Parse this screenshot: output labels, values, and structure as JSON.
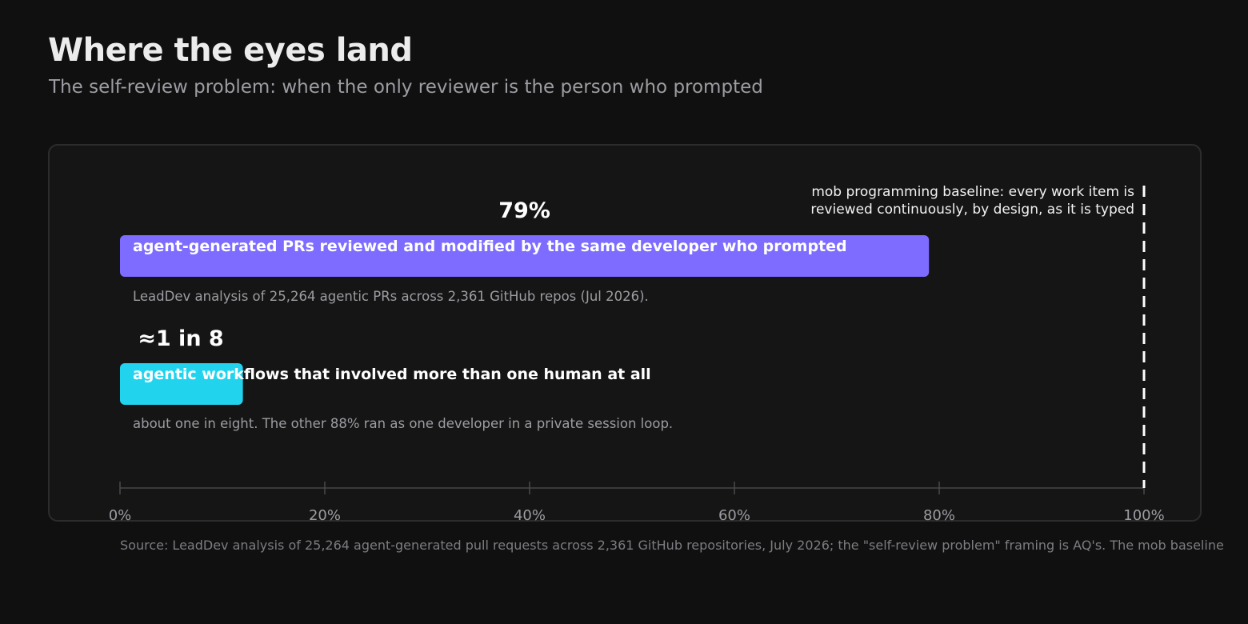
{
  "header": {
    "title": "Where the eyes land",
    "subtitle": "The self-review problem: when the only reviewer is the person who prompted"
  },
  "colors": {
    "background": "#101010",
    "card": "#151515",
    "bar_1": "#7d6cff",
    "bar_2": "#22d3ee",
    "axis": "#3a3a3a",
    "baseline": "#ffffff"
  },
  "chart_data": {
    "type": "bar",
    "orientation": "horizontal",
    "xlim": [
      0,
      100
    ],
    "x_ticks": [
      "0%",
      "20%",
      "40%",
      "60%",
      "80%",
      "100%"
    ],
    "grid": false,
    "series": [
      {
        "value": 79,
        "value_label": "79%",
        "label": "agent-generated PRs reviewed and modified by the same developer who prompted",
        "note": "LeadDev analysis of 25,264 agentic PRs across 2,361 GitHub repos (Jul 2026).",
        "color": "#7d6cff"
      },
      {
        "value": 12,
        "value_label": "≈1 in 8",
        "label": "agentic workflows that involved more than one human at all",
        "note": "about one in eight. The other 88% ran as one developer in a private session loop.",
        "color": "#22d3ee"
      }
    ],
    "baseline": {
      "value": 100,
      "label_lines": [
        "mob programming baseline: every work item is",
        "reviewed continuously, by design, as it is typed"
      ]
    }
  },
  "footer": {
    "source": "Source: LeadDev analysis of 25,264 agent-generated pull requests across 2,361 GitHub repositories, July 2026; the \"self-review problem\" framing is AQ's. The mob baseline"
  }
}
